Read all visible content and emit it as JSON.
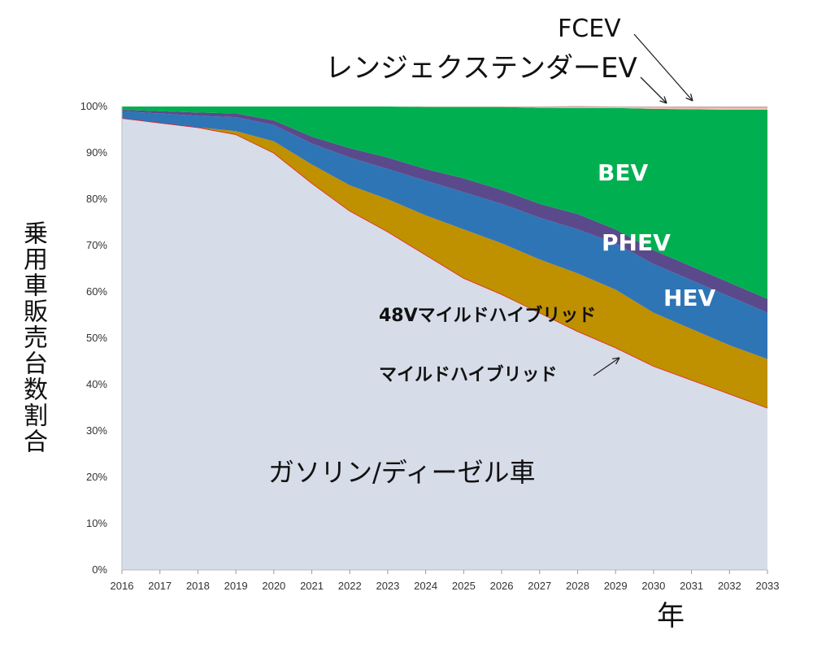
{
  "chart_data": {
    "type": "area",
    "stacked": true,
    "x": [
      2016,
      2017,
      2018,
      2019,
      2020,
      2021,
      2022,
      2023,
      2024,
      2025,
      2026,
      2027,
      2028,
      2029,
      2030,
      2031,
      2032,
      2033
    ],
    "ylim": [
      0,
      100
    ],
    "yticks": [
      "0%",
      "10%",
      "20%",
      "30%",
      "40%",
      "50%",
      "60%",
      "70%",
      "80%",
      "90%",
      "100%"
    ],
    "ylabel": "乗用車販売台数割合",
    "xlabel": "年",
    "series": [
      {
        "name": "ガソリン/ディーゼル車",
        "color": "#d6dce8",
        "values": [
          97.5,
          96.5,
          95.5,
          94,
          90,
          83.5,
          77.5,
          73,
          68,
          63,
          59.5,
          55.5,
          51.5,
          48,
          44,
          41,
          38,
          35
        ]
      },
      {
        "name": "マイルドハイブリッド",
        "color": "#ed1c24",
        "values": [
          0,
          0,
          0,
          0,
          0,
          0,
          0,
          0,
          0,
          0,
          0,
          0,
          0,
          0,
          0,
          0,
          0,
          0
        ]
      },
      {
        "name": "48Vマイルドハイブリッド",
        "color": "#bf9000",
        "values": [
          0,
          0,
          0,
          0.7,
          2.5,
          4,
          5.5,
          7,
          8.5,
          10.5,
          11,
          11.5,
          12.5,
          12.5,
          11.5,
          11,
          10.5,
          10.5
        ]
      },
      {
        "name": "HEV",
        "color": "#2e75b6",
        "values": [
          1.5,
          2,
          2.5,
          3,
          3.5,
          4.5,
          6,
          6.5,
          7.5,
          8,
          8.5,
          9,
          9.5,
          10,
          10.5,
          10.5,
          10.5,
          10
        ]
      },
      {
        "name": "PHEV",
        "color": "#5b4a8b",
        "values": [
          0.3,
          0.5,
          0.7,
          0.8,
          1,
          1.5,
          2,
          2.5,
          2.5,
          3,
          3,
          3,
          3.3,
          3,
          3,
          3,
          3,
          3
        ]
      },
      {
        "name": "BEV",
        "color": "#00b050",
        "values": [
          0.7,
          1,
          1.3,
          1.5,
          3,
          6.5,
          9,
          11,
          13.4,
          15.4,
          17.9,
          20.7,
          22.9,
          26.2,
          30.5,
          33.9,
          37.3,
          40.8
        ]
      },
      {
        "name": "レンジェクステンダーEV",
        "color": "#f2c0b5",
        "values": [
          0,
          0,
          0,
          0,
          0,
          0,
          0,
          0,
          0,
          0,
          0,
          0,
          0.1,
          0.1,
          0.3,
          0.3,
          0.4,
          0.4
        ]
      },
      {
        "name": "FCEV",
        "color": "#c9a9a0",
        "values": [
          0,
          0,
          0,
          0,
          0,
          0,
          0,
          0,
          0.1,
          0.1,
          0.1,
          0.3,
          0.3,
          0.2,
          0.2,
          0.3,
          0.3,
          0.3
        ]
      }
    ]
  }
}
